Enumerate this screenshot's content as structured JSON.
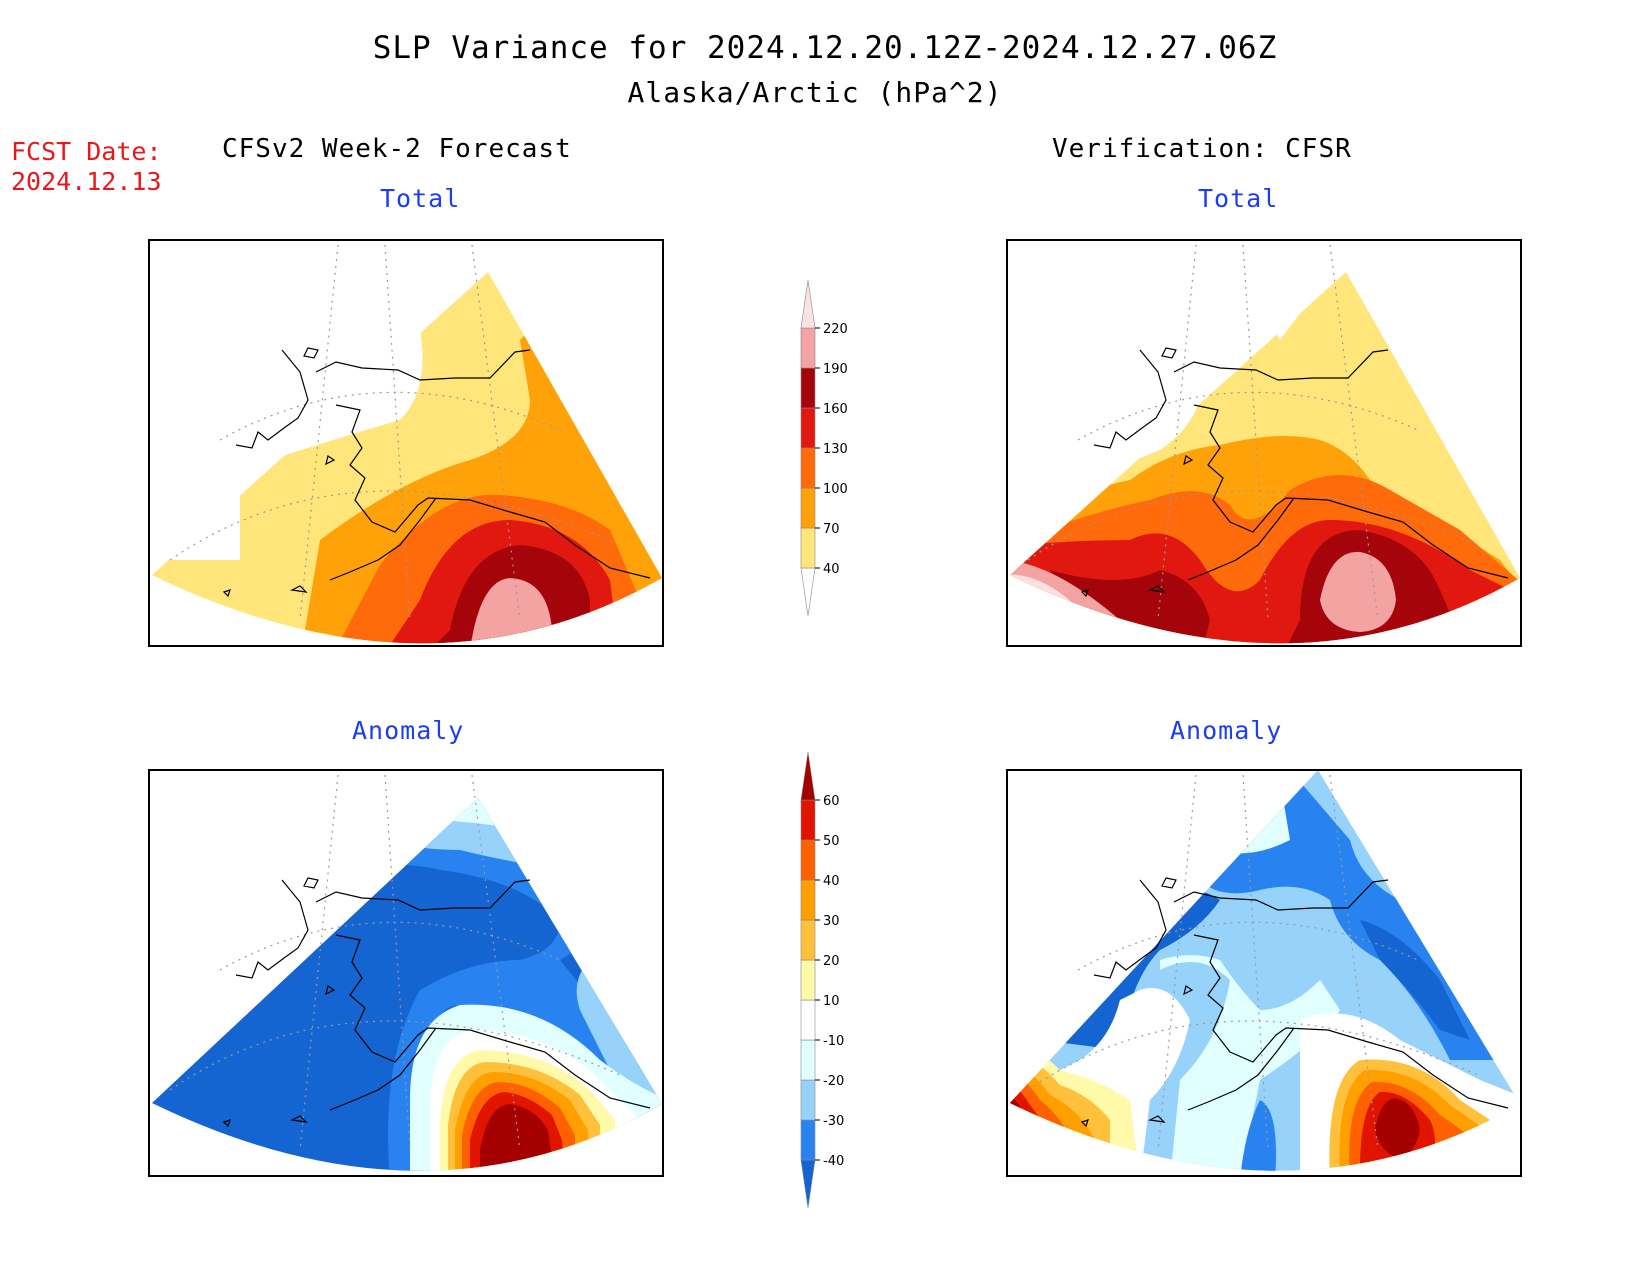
{
  "title": "SLP Variance for 2024.12.20.12Z-2024.12.27.06Z",
  "subtitle": "Alaska/Arctic (hPa^2)",
  "fcst_date": {
    "label": "FCST Date:",
    "value": "2024.12.13"
  },
  "columns": {
    "forecast": "CFSv2 Week-2 Forecast",
    "verification": "Verification: CFSR"
  },
  "panels": {
    "forecast_total": "Total",
    "verification_total": "Total",
    "forecast_anomaly": "Anomaly",
    "verification_anomaly": "Anomaly"
  },
  "colorbars": {
    "total": {
      "ticks": [
        "40",
        "70",
        "100",
        "130",
        "160",
        "190",
        "220"
      ],
      "colors": [
        "#ffffff",
        "#ffe57a",
        "#ffa20a",
        "#ff6a0a",
        "#e11810",
        "#a5050a",
        "#f4a3a3",
        "#fbe1e1"
      ]
    },
    "anomaly": {
      "ticks": [
        "-40",
        "-30",
        "-20",
        "-10",
        "10",
        "20",
        "30",
        "40",
        "50",
        "60"
      ],
      "colors": [
        "#1464d2",
        "#2882f0",
        "#96d2fa",
        "#e1ffff",
        "#ffffff",
        "#fffaaa",
        "#ffc03c",
        "#ffa000",
        "#ff6000",
        "#e11400",
        "#a50000"
      ]
    }
  }
}
